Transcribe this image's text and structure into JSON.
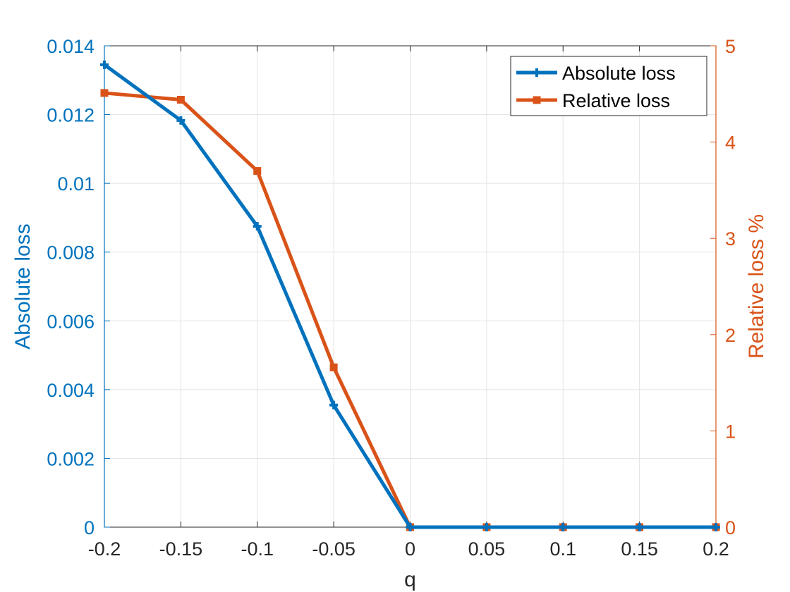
{
  "chart_data": {
    "type": "line",
    "title": "",
    "xlabel": "q",
    "ylabel": "Absolute loss",
    "y2label": "Relative loss %",
    "x": [
      -0.2,
      -0.15,
      -0.1,
      -0.05,
      0,
      0.05,
      0.1,
      0.15,
      0.2
    ],
    "xlim": [
      -0.2,
      0.2
    ],
    "ylim": [
      0,
      0.014
    ],
    "y2lim": [
      0,
      5
    ],
    "xticks": [
      -0.2,
      -0.15,
      -0.1,
      -0.05,
      0,
      0.05,
      0.1,
      0.15,
      0.2
    ],
    "xtick_labels": [
      "-0.2",
      "-0.15",
      "-0.1",
      "-0.05",
      "0",
      "0.05",
      "0.1",
      "0.15",
      "0.2"
    ],
    "yticks": [
      0,
      0.002,
      0.004,
      0.006,
      0.008,
      0.01,
      0.012,
      0.014
    ],
    "ytick_labels": [
      "0",
      "0.002",
      "0.004",
      "0.006",
      "0.008",
      "0.01",
      "0.012",
      "0.014"
    ],
    "y2ticks": [
      0,
      1,
      2,
      3,
      4,
      5
    ],
    "y2tick_labels": [
      "0",
      "1",
      "2",
      "3",
      "4",
      "5"
    ],
    "grid": true,
    "legend_position": "top-right",
    "series": [
      {
        "name": "Absolute loss",
        "axis": "left",
        "color": "#0072BD",
        "marker": "plus",
        "values": [
          0.01345,
          0.01183,
          0.00875,
          0.00355,
          0,
          0,
          0,
          0,
          0
        ]
      },
      {
        "name": "Relative loss",
        "axis": "right",
        "color": "#D95319",
        "marker": "square",
        "values": [
          4.51,
          4.44,
          3.7,
          1.66,
          0,
          0,
          0,
          0,
          0
        ]
      }
    ]
  }
}
